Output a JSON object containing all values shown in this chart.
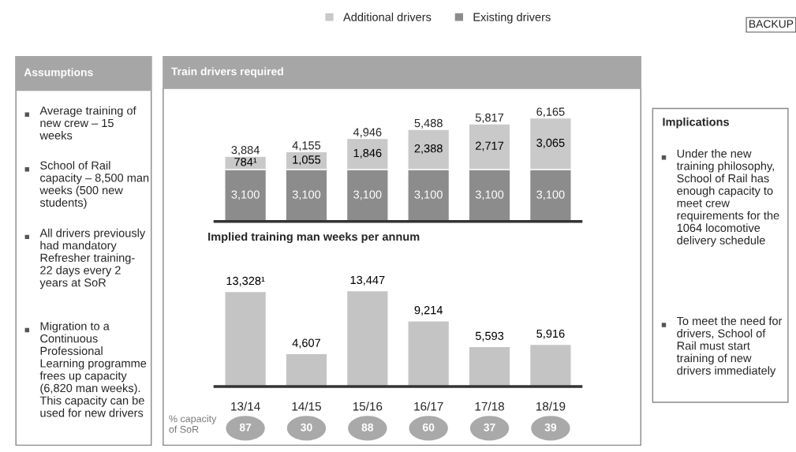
{
  "chart_data": [
    {
      "type": "other",
      "title": "Assumptions",
      "annotations": [
        "Average training of new crew – 15 weeks",
        "School of Rail capacity – 8,500 man weeks (500 new students)",
        "All drivers previously had mandatory Refresher training- 22 days every 2 years at SoR",
        "Migration to a Continuous Professional Learning programme frees up capacity (6,820 man weeks). This capacity can be used for new drivers"
      ]
    },
    {
      "type": "bar",
      "title": "Train drivers required",
      "stacked": true,
      "legend": "top",
      "categories": [
        null,
        null,
        null,
        null,
        null,
        null
      ],
      "series": [
        {
          "name": "Existing drivers",
          "color": "#8c8c8c",
          "values": [
            3100,
            3100,
            3100,
            3100,
            3100,
            3100
          ],
          "value_labels": [
            "3,100",
            "3,100",
            "3,100",
            "3,100",
            "3,100",
            "3,100"
          ]
        },
        {
          "name": "Additional drivers",
          "color": "#c9c9c9",
          "values": [
            784,
            1055,
            1846,
            2388,
            2717,
            3065
          ],
          "value_labels": [
            "784¹",
            "1,055",
            "1,846",
            "2,388",
            "2,717",
            "3,065"
          ]
        }
      ],
      "totals": [
        "3,884",
        "4,155",
        "4,946",
        "5,488",
        "5,817",
        "6,165"
      ]
    },
    {
      "type": "bar",
      "title": "Implied training man weeks per annum",
      "categories": [
        "13/14",
        "14/15",
        "15/16",
        "16/17",
        "17/18",
        "18/19"
      ],
      "series": [
        {
          "color": "#c4c4c4",
          "values": [
            13328,
            4607,
            13447,
            9214,
            5593,
            5916
          ],
          "value_labels": [
            "13,328¹",
            "4,607",
            "13,447",
            "9,214",
            "5,593",
            "5,916"
          ]
        }
      ]
    },
    {
      "type": "other",
      "title": "% capacity of SoR",
      "color": "#a9a9a9",
      "values": [
        87,
        30,
        88,
        60,
        37,
        39
      ],
      "data_labels": true
    },
    {
      "type": "other",
      "title": "Implications",
      "annotations": [
        "Under the new training philosophy, School of Rail has enough capacity to meet crew requirements for the 1064 locomotive delivery schedule",
        "To meet the need for drivers, School of Rail must start training of new drivers immediately"
      ]
    },
    {
      "type": "other",
      "annotations": [
        "BACKUP"
      ]
    }
  ]
}
